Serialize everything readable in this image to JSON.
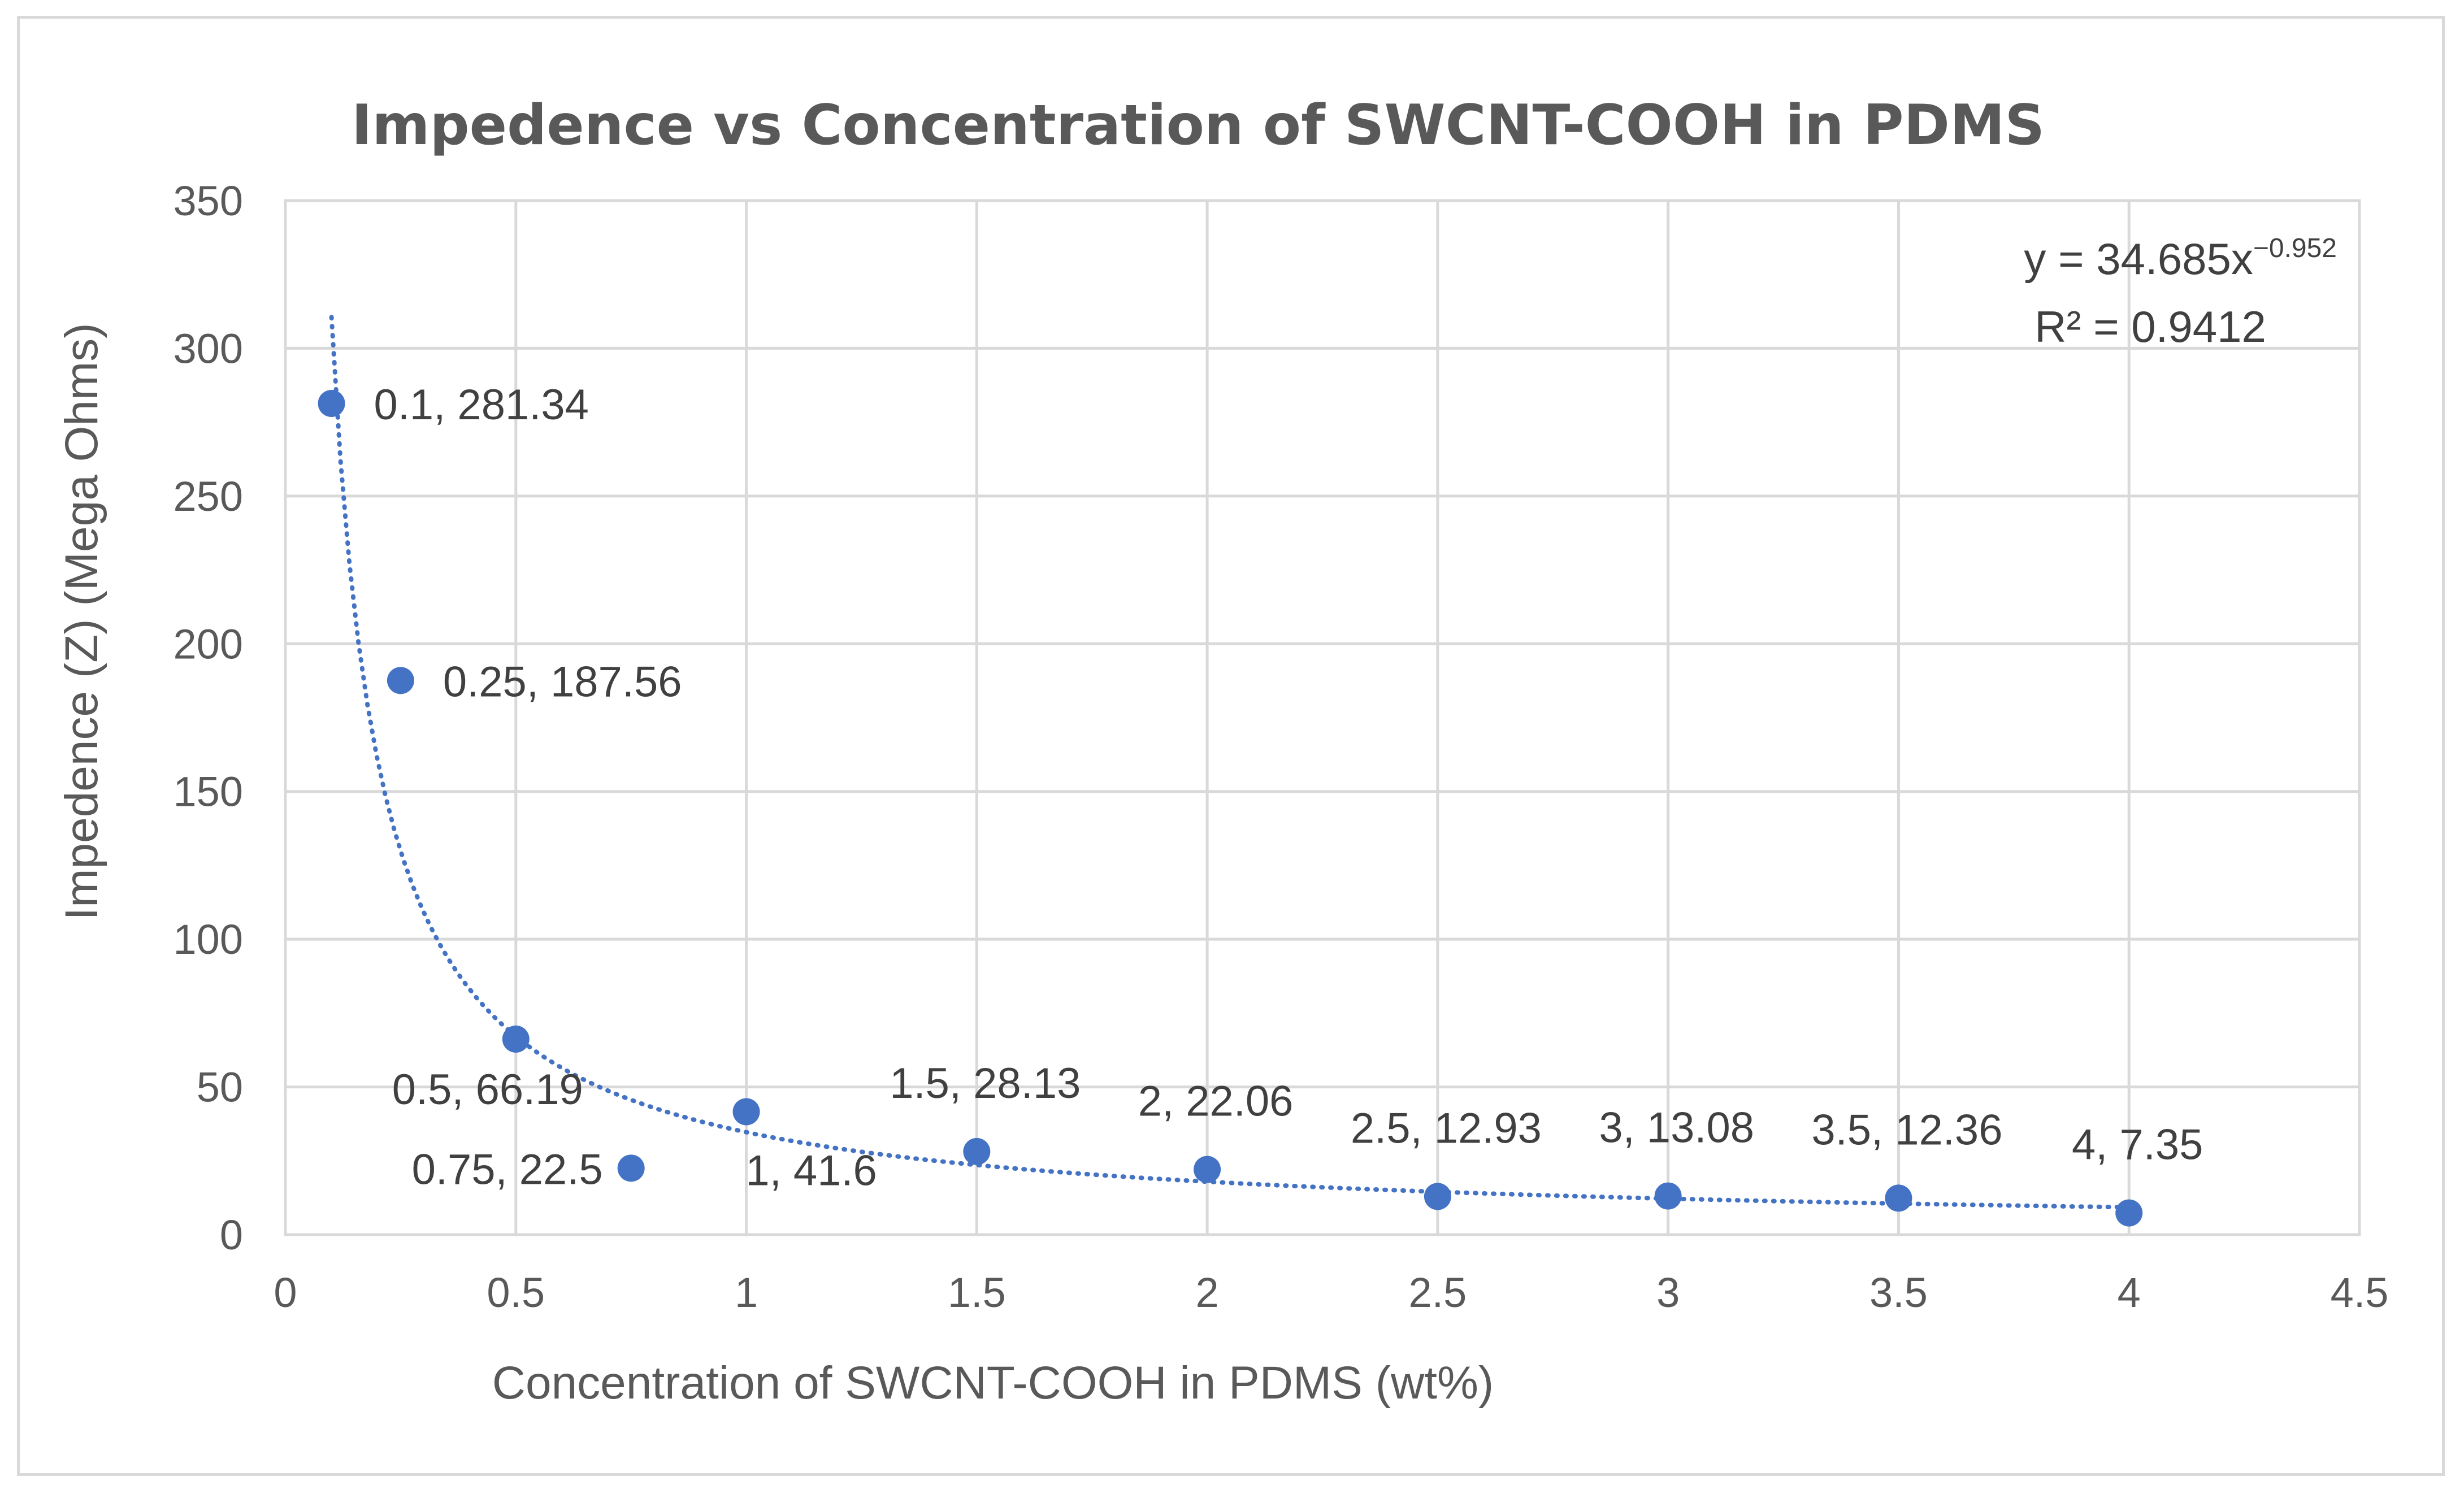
{
  "chart_data": {
    "type": "scatter",
    "title": "Impedence vs Concentration of SWCNT-COOH in PDMS",
    "xlabel": "Concentration of SWCNT-COOH in PDMS (wt%)",
    "ylabel": "Impedence (Z) (Mega Ohms)",
    "xlim": [
      0,
      4.5
    ],
    "ylim": [
      0,
      350
    ],
    "x_ticks": [
      0,
      0.5,
      1,
      1.5,
      2,
      2.5,
      3,
      3.5,
      4,
      4.5
    ],
    "y_ticks": [
      0,
      50,
      100,
      150,
      200,
      250,
      300,
      350
    ],
    "x_tick_labels": [
      "0",
      "0.5",
      "1",
      "1.5",
      "2",
      "2.5",
      "3",
      "3.5",
      "4",
      "4.5"
    ],
    "y_tick_labels": [
      "0",
      "50",
      "100",
      "150",
      "200",
      "250",
      "300",
      "350"
    ],
    "grid": true,
    "point_color": "#4472c4",
    "points": [
      {
        "x": 0.1,
        "y": 281.34,
        "label": "0.1, 281.34",
        "label_pos": "right"
      },
      {
        "x": 0.25,
        "y": 187.56,
        "label": "0.25, 187.56",
        "label_pos": "right"
      },
      {
        "x": 0.5,
        "y": 66.19,
        "label": "0.5, 66.19",
        "label_pos": "below-left"
      },
      {
        "x": 0.75,
        "y": 22.5,
        "label": "0.75, 22.5",
        "label_pos": "left"
      },
      {
        "x": 1,
        "y": 41.6,
        "label": "1, 41.6",
        "label_pos": "below-right"
      },
      {
        "x": 1.5,
        "y": 28.13,
        "label": "1.5, 28.13",
        "label_pos": "above"
      },
      {
        "x": 2,
        "y": 22.06,
        "label": "2, 22.06",
        "label_pos": "above"
      },
      {
        "x": 2.5,
        "y": 12.93,
        "label": "2.5, 12.93",
        "label_pos": "above"
      },
      {
        "x": 3,
        "y": 13.08,
        "label": "3, 13.08",
        "label_pos": "above"
      },
      {
        "x": 3.5,
        "y": 12.36,
        "label": "3.5, 12.36",
        "label_pos": "above"
      },
      {
        "x": 4,
        "y": 7.35,
        "label": "4, 7.35",
        "label_pos": "above"
      }
    ],
    "trendline": {
      "type": "power",
      "coefficient": 34.685,
      "exponent": -0.952,
      "x_range": [
        0.1,
        4
      ],
      "style": "dotted",
      "equation_prefix": "y = 34.685x",
      "equation_exponent": "−0.952",
      "r_squared_text": "R² = 0.9412"
    }
  }
}
